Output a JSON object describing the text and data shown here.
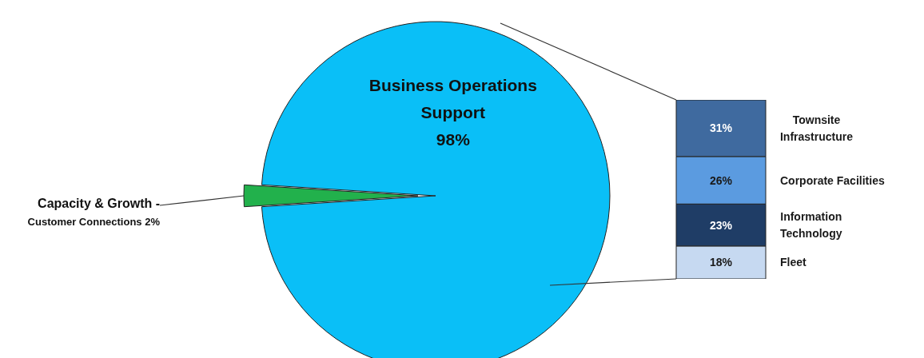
{
  "chart_data": [
    {
      "type": "pie",
      "categories": [
        "Capacity & Growth - Customer Connections",
        "Business Operations Support"
      ],
      "values": [
        2,
        98
      ],
      "colors": [
        "#22b14c",
        "#0abff7"
      ],
      "value_labels": [
        "2%",
        "98%"
      ]
    },
    {
      "type": "bar",
      "stacked": true,
      "categories": [
        null
      ],
      "tick_labels": false,
      "series": [
        {
          "name": "Fleet",
          "color": "#c6d9f1",
          "values": [
            18
          ],
          "value_labels": [
            "18%"
          ]
        },
        {
          "name": "Information Technology",
          "color": "#1f3d66",
          "values": [
            23
          ],
          "value_labels": [
            "23%"
          ]
        },
        {
          "name": "Corporate Facilities",
          "color": "#5b9be0",
          "values": [
            26
          ],
          "value_labels": [
            "26%"
          ]
        },
        {
          "name": "Townsite Infrastructure",
          "color": "#3f6a9f",
          "values": [
            31
          ],
          "value_labels": [
            "31%"
          ]
        }
      ]
    }
  ]
}
